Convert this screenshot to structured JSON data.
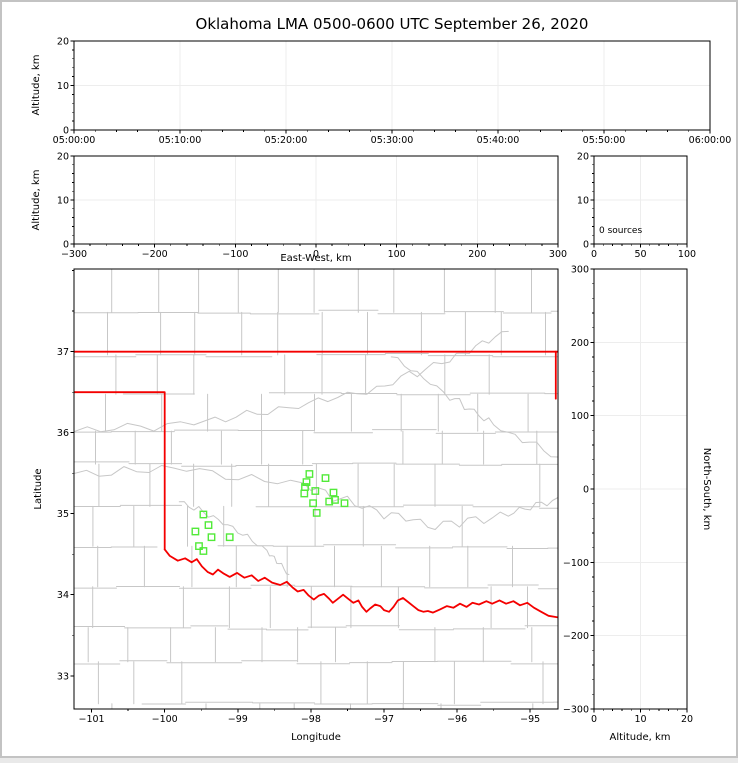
{
  "title": "Oklahoma LMA 0500-0600 UTC September 26, 2020",
  "colors": {
    "state_border": "#f40000",
    "county_line": "#c7c7c7",
    "source_marker": "#52ea39",
    "gridline": "#ededed",
    "axis": "#000000",
    "figure_frame": "#c3c3c3",
    "background": "#ffffff"
  },
  "chart_data": [
    {
      "id": "time_height_panel",
      "type": "scatter",
      "xlabel": "",
      "ylabel": "Altitude, km",
      "xlim": [
        0,
        3600
      ],
      "ylim": [
        0,
        20
      ],
      "xticks": {
        "values": [
          0,
          600,
          1200,
          1800,
          2400,
          3000,
          3600
        ],
        "labels": [
          "05:00:00",
          "05:10:00",
          "05:20:00",
          "05:30:00",
          "05:40:00",
          "05:50:00",
          "06:00:00"
        ],
        "minor_step": 120
      },
      "yticks": {
        "values": [
          0,
          10,
          20
        ],
        "labels": [
          "0",
          "10",
          "20"
        ],
        "minor_step": 2
      },
      "grid_x": [
        600,
        1200,
        1800,
        2400,
        3000
      ],
      "grid_y": [
        10
      ],
      "points": []
    },
    {
      "id": "eastwest_height_panel",
      "type": "scatter",
      "xlabel": "East-West, km",
      "ylabel": "Altitude, km",
      "xlim": [
        -300,
        300
      ],
      "ylim": [
        0,
        20
      ],
      "xticks": {
        "values": [
          -300,
          -200,
          -100,
          0,
          100,
          200,
          300
        ],
        "labels": [
          "−300",
          "−200",
          "−100",
          "0",
          "100",
          "200",
          "300"
        ],
        "minor_step": 20
      },
      "yticks": {
        "values": [
          0,
          10,
          20
        ],
        "labels": [
          "0",
          "10",
          "20"
        ],
        "minor_step": 2
      },
      "grid_x": [
        -200,
        -100,
        0,
        100,
        200
      ],
      "grid_y": [
        10
      ],
      "points": []
    },
    {
      "id": "source_count_panel",
      "type": "scatter",
      "xlabel": "",
      "ylabel": "",
      "xlim": [
        0,
        100
      ],
      "ylim": [
        0,
        20
      ],
      "xticks": {
        "values": [
          0,
          50,
          100
        ],
        "labels": [
          "0",
          "50",
          "100"
        ],
        "minor_step": 10
      },
      "yticks": {
        "values": [
          0,
          10,
          20
        ],
        "labels": [
          "0",
          "10",
          "20"
        ],
        "minor_step": 2
      },
      "grid_x": [
        50
      ],
      "grid_y": [
        10
      ],
      "annotation": "0 sources",
      "points": []
    },
    {
      "id": "plan_view_map_panel",
      "type": "scatter",
      "xlabel": "Longitude",
      "ylabel": "Latitude",
      "xlim": [
        -101.24,
        -94.62
      ],
      "ylim": [
        32.59,
        38.02
      ],
      "xticks": {
        "values": [
          -101,
          -100,
          -99,
          -98,
          -97,
          -96,
          -95
        ],
        "labels": [
          "−101",
          "−100",
          "−99",
          "−98",
          "−97",
          "−96",
          "−95"
        ],
        "minor_step": 0.5
      },
      "yticks": {
        "values": [
          33,
          34,
          35,
          36,
          37
        ],
        "labels": [
          "33",
          "34",
          "35",
          "36",
          "37"
        ],
        "minor_step": 0.5
      },
      "grid_x": [],
      "grid_y": [],
      "sources": [
        [
          -99.47,
          34.99
        ],
        [
          -99.4,
          34.86
        ],
        [
          -99.58,
          34.78
        ],
        [
          -99.36,
          34.71
        ],
        [
          -99.11,
          34.71
        ],
        [
          -99.53,
          34.6
        ],
        [
          -99.47,
          34.54
        ],
        [
          -98.02,
          35.49
        ],
        [
          -97.8,
          35.44
        ],
        [
          -98.06,
          35.39
        ],
        [
          -98.08,
          35.33
        ],
        [
          -98.09,
          35.25
        ],
        [
          -97.94,
          35.28
        ],
        [
          -97.97,
          35.13
        ],
        [
          -97.75,
          35.15
        ],
        [
          -97.69,
          35.26
        ],
        [
          -97.67,
          35.17
        ],
        [
          -97.54,
          35.13
        ],
        [
          -97.92,
          35.01
        ]
      ],
      "state_border": [
        [
          [
            -101.24,
            37.0
          ],
          [
            -94.62,
            37.0
          ]
        ],
        [
          [
            -101.24,
            36.5
          ],
          [
            -100.0,
            36.5
          ],
          [
            -100.0,
            34.56
          ]
        ],
        [
          [
            -94.65,
            37.0
          ],
          [
            -94.65,
            36.42
          ]
        ]
      ],
      "red_river": [
        [
          -100.0,
          34.56
        ],
        [
          -99.93,
          34.48
        ],
        [
          -99.82,
          34.42
        ],
        [
          -99.72,
          34.45
        ],
        [
          -99.63,
          34.4
        ],
        [
          -99.56,
          34.44
        ],
        [
          -99.49,
          34.35
        ],
        [
          -99.41,
          34.28
        ],
        [
          -99.34,
          34.25
        ],
        [
          -99.27,
          34.31
        ],
        [
          -99.19,
          34.26
        ],
        [
          -99.11,
          34.22
        ],
        [
          -99.01,
          34.27
        ],
        [
          -98.91,
          34.21
        ],
        [
          -98.81,
          34.24
        ],
        [
          -98.72,
          34.17
        ],
        [
          -98.63,
          34.21
        ],
        [
          -98.53,
          34.15
        ],
        [
          -98.42,
          34.12
        ],
        [
          -98.33,
          34.16
        ],
        [
          -98.25,
          34.09
        ],
        [
          -98.18,
          34.04
        ],
        [
          -98.1,
          34.06
        ],
        [
          -98.03,
          33.99
        ],
        [
          -97.96,
          33.94
        ],
        [
          -97.89,
          33.99
        ],
        [
          -97.82,
          34.01
        ],
        [
          -97.75,
          33.95
        ],
        [
          -97.7,
          33.9
        ],
        [
          -97.63,
          33.95
        ],
        [
          -97.56,
          34.0
        ],
        [
          -97.49,
          33.95
        ],
        [
          -97.42,
          33.9
        ],
        [
          -97.35,
          33.93
        ],
        [
          -97.3,
          33.85
        ],
        [
          -97.24,
          33.79
        ],
        [
          -97.19,
          33.83
        ],
        [
          -97.12,
          33.88
        ],
        [
          -97.05,
          33.86
        ],
        [
          -97.0,
          33.81
        ],
        [
          -96.93,
          33.79
        ],
        [
          -96.87,
          33.85
        ],
        [
          -96.81,
          33.93
        ],
        [
          -96.74,
          33.96
        ],
        [
          -96.67,
          33.91
        ],
        [
          -96.6,
          33.86
        ],
        [
          -96.53,
          33.81
        ],
        [
          -96.46,
          33.79
        ],
        [
          -96.4,
          33.8
        ],
        [
          -96.33,
          33.78
        ],
        [
          -96.23,
          33.82
        ],
        [
          -96.14,
          33.86
        ],
        [
          -96.05,
          33.84
        ],
        [
          -95.96,
          33.89
        ],
        [
          -95.87,
          33.85
        ],
        [
          -95.79,
          33.9
        ],
        [
          -95.7,
          33.88
        ],
        [
          -95.6,
          33.92
        ],
        [
          -95.52,
          33.89
        ],
        [
          -95.42,
          33.93
        ],
        [
          -95.33,
          33.89
        ],
        [
          -95.23,
          33.92
        ],
        [
          -95.14,
          33.87
        ],
        [
          -95.04,
          33.9
        ],
        [
          -94.95,
          33.84
        ],
        [
          -94.85,
          33.79
        ],
        [
          -94.75,
          33.74
        ],
        [
          -94.62,
          33.72
        ]
      ],
      "points": []
    },
    {
      "id": "northsouth_height_panel",
      "type": "scatter",
      "xlabel": "Altitude, km",
      "ylabel": "North-South, km",
      "xlim": [
        0,
        20
      ],
      "ylim": [
        -300,
        300
      ],
      "xticks": {
        "values": [
          0,
          10,
          20
        ],
        "labels": [
          "0",
          "10",
          "20"
        ],
        "minor_step": 2
      },
      "yticks": {
        "values": [
          -300,
          -200,
          -100,
          0,
          100,
          200,
          300
        ],
        "labels": [
          "−300",
          "−200",
          "−100",
          "0",
          "100",
          "200",
          "300"
        ],
        "minor_step": 20
      },
      "grid_x": [
        10
      ],
      "grid_y": [
        -200,
        -100,
        0,
        100,
        200
      ],
      "points": []
    }
  ]
}
